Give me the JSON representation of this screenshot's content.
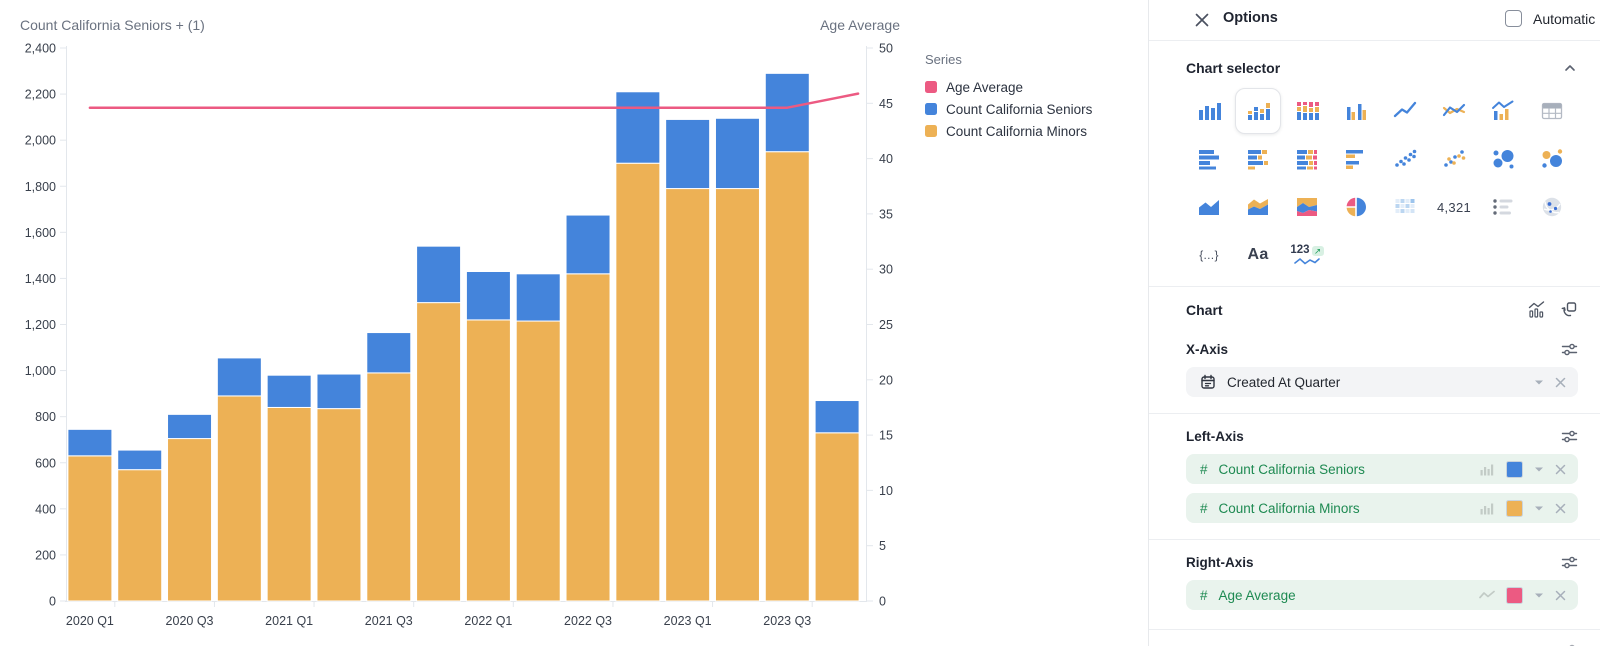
{
  "chart": {
    "left_axis_title": "Count California Seniors + (1)",
    "right_axis_title": "Age Average",
    "legend": {
      "title": "Series",
      "items": [
        {
          "label": "Age Average",
          "color": "#EC5A82"
        },
        {
          "label": "Count California Seniors",
          "color": "#4484DB"
        },
        {
          "label": "Count California Minors",
          "color": "#EDB155"
        }
      ]
    }
  },
  "chart_data": {
    "type": "bar",
    "stacked": true,
    "grid": false,
    "legend_position": "right",
    "categories": [
      "2020 Q1",
      "2020 Q2",
      "2020 Q3",
      "2020 Q4",
      "2021 Q1",
      "2021 Q2",
      "2021 Q3",
      "2021 Q4",
      "2022 Q1",
      "2022 Q2",
      "2022 Q3",
      "2022 Q4",
      "2023 Q1",
      "2023 Q2",
      "2023 Q3",
      "2023 Q4"
    ],
    "x_tick_labels": [
      "2020 Q1",
      "2020 Q3",
      "2021 Q1",
      "2021 Q3",
      "2022 Q1",
      "2022 Q3",
      "2023 Q1",
      "2023 Q3"
    ],
    "series": [
      {
        "name": "Count California Minors",
        "type": "bar",
        "axis": "left",
        "color": "#EDB155",
        "values": [
          630,
          570,
          705,
          890,
          840,
          835,
          990,
          1295,
          1220,
          1215,
          1420,
          1900,
          1790,
          1790,
          1950,
          730
        ]
      },
      {
        "name": "Count California Seniors",
        "type": "bar",
        "axis": "left",
        "color": "#4484DB",
        "values": [
          115,
          85,
          105,
          165,
          140,
          150,
          175,
          245,
          210,
          205,
          255,
          310,
          300,
          305,
          340,
          140
        ]
      },
      {
        "name": "Age Average",
        "type": "line",
        "axis": "right",
        "color": "#EC5A82",
        "values": [
          44.6,
          44.6,
          44.6,
          44.6,
          44.6,
          44.6,
          44.6,
          44.6,
          44.6,
          44.6,
          44.6,
          44.6,
          44.6,
          44.6,
          44.6,
          45.5
        ]
      }
    ],
    "left_axis": {
      "min": 0,
      "max": 2400,
      "step": 200
    },
    "right_axis": {
      "min": 0,
      "max": 50,
      "step": 5
    },
    "xlabel": "",
    "ylabel": "",
    "title": ""
  },
  "panel": {
    "title": "Options",
    "automatic_label": "Automatic",
    "chart_selector": {
      "title": "Chart selector",
      "selected": "bar-stacked",
      "icons": [
        "bar",
        "bar-stacked",
        "bar-stacked-100",
        "bar-grouped",
        "line",
        "line-multi",
        "combo",
        "table",
        "bar-horizontal",
        "bar-horizontal-stacked",
        "bar-horizontal-100",
        "bar-horizontal-grouped",
        "scatter",
        "scatter-multi",
        "bubble",
        "bubble-multi",
        "area",
        "area-stacked",
        "area-100",
        "pie",
        "pivot-table",
        "number",
        "list",
        "map",
        "json",
        "text",
        "trend"
      ],
      "number_icon_text": "4,321",
      "json_icon_text": "{...}",
      "text_icon_text": "Aa",
      "trend_icon_text": "123"
    },
    "chart_section": {
      "title": "Chart"
    },
    "x_axis": {
      "title": "X-Axis",
      "fields": [
        {
          "label": "Created At Quarter",
          "icon": "calendar"
        }
      ]
    },
    "left_axis": {
      "title": "Left-Axis",
      "fields": [
        {
          "prefix": "#",
          "label": "Count California Seniors",
          "mini_icon": "column-chart",
          "color": "#4484DB"
        },
        {
          "prefix": "#",
          "label": "Count California Minors",
          "mini_icon": "column-chart",
          "color": "#EDB155"
        }
      ]
    },
    "right_axis": {
      "title": "Right-Axis",
      "fields": [
        {
          "prefix": "#",
          "label": "Age Average",
          "mini_icon": "line-chart",
          "color": "#EC5A82"
        }
      ]
    }
  },
  "colors": {
    "blue": "#4484DB",
    "yellow": "#EDB155",
    "pink": "#EC5A82",
    "green_text": "#1E8A52",
    "green_pill_bg": "#E9F3ED",
    "gray_pill_bg": "#F3F4F6",
    "axis_text": "#39404C",
    "muted_text": "#6A7280"
  }
}
